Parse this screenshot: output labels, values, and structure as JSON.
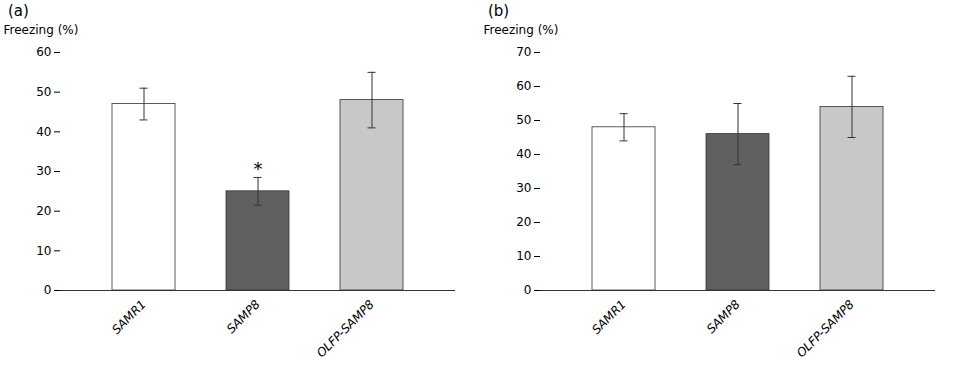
{
  "chart_data": [
    {
      "type": "bar",
      "title": "(a)",
      "categories": [
        "SAMR1",
        "SAMP8",
        "OLFP-SAMP8"
      ],
      "values": [
        47,
        25,
        48
      ],
      "errors": [
        4,
        3.5,
        7
      ],
      "colors": [
        "#ffffff",
        "#606060",
        "#c8c8c8"
      ],
      "y_label": "Freezing (%)",
      "ylim": [
        0,
        60
      ],
      "yticks": [
        0,
        10,
        20,
        30,
        40,
        50,
        60
      ],
      "grid": false,
      "annotations": [
        {
          "text": "*",
          "x": "SAMP8",
          "y": 29
        }
      ]
    },
    {
      "type": "bar",
      "title": "(b)",
      "categories": [
        "SAMR1",
        "SAMP8",
        "OLFP-SAMP8"
      ],
      "values": [
        48,
        46,
        54
      ],
      "errors": [
        4,
        9,
        9
      ],
      "colors": [
        "#ffffff",
        "#606060",
        "#c8c8c8"
      ],
      "y_label": "Freezing (%)",
      "ylim": [
        0,
        70
      ],
      "yticks": [
        0,
        10,
        20,
        30,
        40,
        50,
        60,
        70
      ],
      "grid": false
    }
  ]
}
